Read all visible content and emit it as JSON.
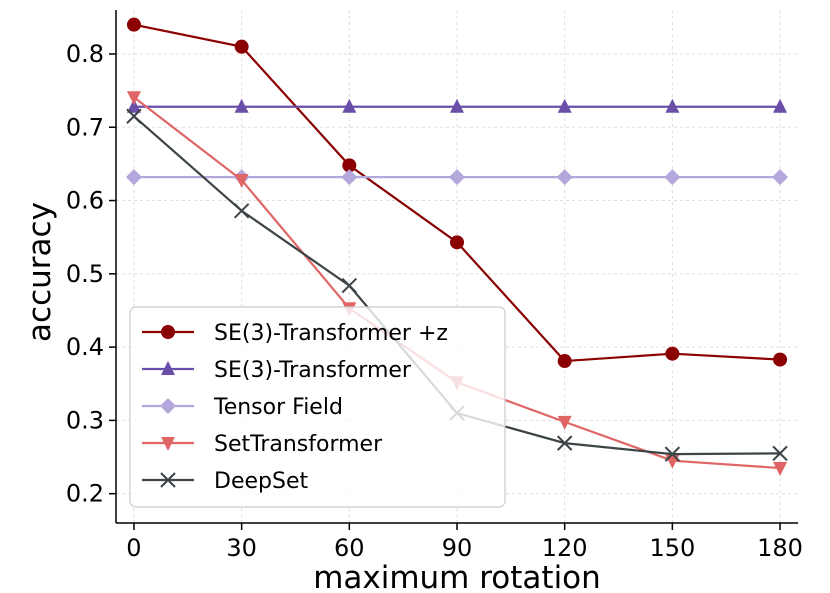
{
  "chart_data": {
    "type": "line",
    "title": "",
    "xlabel": "maximum rotation",
    "ylabel": "accuracy",
    "x": [
      0,
      30,
      60,
      90,
      120,
      150,
      180
    ],
    "xticks": [
      0,
      30,
      60,
      90,
      120,
      150,
      180
    ],
    "xtick_labels": [
      "0",
      "30",
      "60",
      "90",
      "120",
      "150",
      "180"
    ],
    "xlim": [
      -5,
      185
    ],
    "yticks": [
      0.2,
      0.3,
      0.4,
      0.5,
      0.6,
      0.7,
      0.8
    ],
    "ytick_labels": [
      "0.2",
      "0.3",
      "0.4",
      "0.5",
      "0.6",
      "0.7",
      "0.8"
    ],
    "ylim": [
      0.16,
      0.86
    ],
    "grid": true,
    "legend_position": "lower-left",
    "series": [
      {
        "name": "SE(3)-Transformer +z",
        "color": "#8b0000",
        "marker": "circle",
        "values": [
          0.84,
          0.81,
          0.648,
          0.543,
          0.381,
          0.391,
          0.383
        ]
      },
      {
        "name": "SE(3)-Transformer",
        "color": "#6a4fa8",
        "marker": "triangle-up",
        "values": [
          0.728,
          0.728,
          0.728,
          0.728,
          0.728,
          0.728,
          0.728
        ]
      },
      {
        "name": "Tensor Field",
        "color": "#b4a7dc",
        "marker": "diamond",
        "values": [
          0.632,
          0.632,
          0.632,
          0.632,
          0.632,
          0.632,
          0.632
        ]
      },
      {
        "name": "SetTransformer",
        "color": "#e06666",
        "marker": "triangle-down",
        "values": [
          0.741,
          0.628,
          0.453,
          0.352,
          0.298,
          0.245,
          0.235
        ]
      },
      {
        "name": "DeepSet",
        "color": "#3c4448",
        "marker": "x",
        "values": [
          0.715,
          0.586,
          0.484,
          0.31,
          0.269,
          0.254,
          0.255
        ]
      }
    ]
  }
}
